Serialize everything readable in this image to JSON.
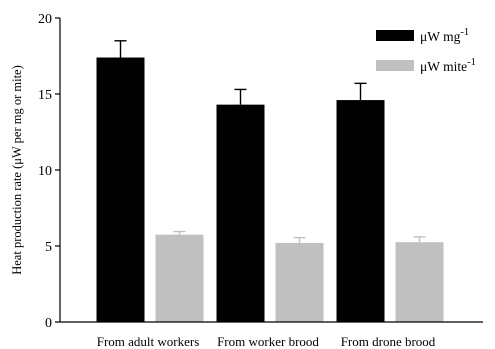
{
  "chart_data": {
    "type": "bar",
    "categories": [
      "From adult workers",
      "From worker brood",
      "From drone brood"
    ],
    "series": [
      {
        "name": "μW mg-1",
        "name_base": "μW mg",
        "name_sup": "-1",
        "color": "#000000",
        "values": [
          17.4,
          14.3,
          14.6
        ],
        "errors": [
          1.1,
          1.0,
          1.1
        ]
      },
      {
        "name": "μW mite-1",
        "name_base": "μW mite",
        "name_sup": "-1",
        "color": "#c0c0c0",
        "values": [
          5.75,
          5.2,
          5.25
        ],
        "errors": [
          0.2,
          0.35,
          0.35
        ]
      }
    ],
    "ylabel": "Heat production rate (μW per mg or mite)",
    "xlabel": "",
    "ylim": [
      0,
      20
    ],
    "yticks": [
      "0",
      "5",
      "10",
      "15",
      "20"
    ],
    "grid": false,
    "legend_position": "top-right"
  }
}
